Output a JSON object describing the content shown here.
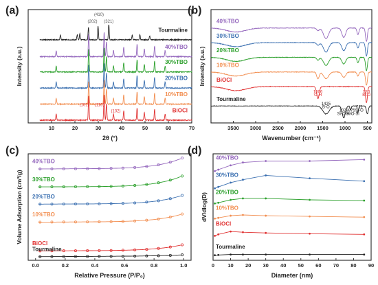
{
  "chart_data": [
    {
      "panel_label": "(a)",
      "type": "line",
      "xlabel": "2θ (°)",
      "ylabel": "Intensity (a.u.)",
      "xlim": [
        0,
        70
      ],
      "xticks": [
        10,
        20,
        30,
        40,
        50,
        60,
        70
      ],
      "series": [
        {
          "name": "Tourmaline",
          "color": "#222222",
          "offset": 5.4,
          "peaks": [
            [
              13.8,
              0.3
            ],
            [
              21.0,
              0.35
            ],
            [
              22.1,
              0.4
            ],
            [
              25.8,
              0.8
            ],
            [
              29.9,
              0.9
            ],
            [
              34.5,
              1.0
            ],
            [
              44.5,
              0.3
            ],
            [
              47.8,
              0.35
            ],
            [
              52.0,
              0.25
            ]
          ]
        },
        {
          "name": "40%TBO",
          "color": "#9467bd",
          "offset": 4.3,
          "peaks": [
            [
              12.0,
              0.4
            ],
            [
              25.9,
              1.5
            ],
            [
              32.5,
              1.6
            ],
            [
              33.5,
              1.0
            ],
            [
              36.5,
              0.4
            ],
            [
              40.9,
              0.6
            ],
            [
              46.6,
              0.8
            ],
            [
              49.7,
              0.5
            ],
            [
              54.1,
              0.7
            ],
            [
              58.6,
              0.4
            ]
          ]
        },
        {
          "name": "30%TBO",
          "color": "#2ca02c",
          "offset": 3.3,
          "peaks": [
            [
              12.0,
              0.4
            ],
            [
              25.9,
              1.5
            ],
            [
              32.5,
              1.6
            ],
            [
              33.5,
              1.0
            ],
            [
              36.5,
              0.4
            ],
            [
              40.9,
              0.6
            ],
            [
              46.6,
              0.8
            ],
            [
              49.7,
              0.5
            ],
            [
              54.1,
              0.7
            ],
            [
              58.6,
              0.4
            ]
          ]
        },
        {
          "name": "20%TBO",
          "color": "#3a6fb0",
          "offset": 2.25,
          "peaks": [
            [
              12.0,
              0.4
            ],
            [
              25.9,
              1.5
            ],
            [
              32.5,
              1.6
            ],
            [
              33.5,
              1.0
            ],
            [
              36.5,
              0.4
            ],
            [
              40.9,
              0.6
            ],
            [
              46.6,
              0.8
            ],
            [
              49.7,
              0.5
            ],
            [
              54.1,
              0.7
            ],
            [
              58.6,
              0.4
            ]
          ]
        },
        {
          "name": "10%TBO",
          "color": "#f28e50",
          "offset": 1.2,
          "peaks": [
            [
              12.0,
              0.4
            ],
            [
              25.9,
              1.5
            ],
            [
              32.5,
              1.6
            ],
            [
              33.5,
              1.0
            ],
            [
              36.5,
              0.4
            ],
            [
              40.9,
              0.6
            ],
            [
              46.6,
              0.8
            ],
            [
              49.7,
              0.5
            ],
            [
              54.1,
              0.7
            ],
            [
              58.6,
              0.4
            ]
          ]
        },
        {
          "name": "BiOCl",
          "color": "#e03030",
          "offset": 0.15,
          "peaks": [
            [
              12.0,
              0.4
            ],
            [
              25.9,
              1.6
            ],
            [
              32.5,
              1.7
            ],
            [
              33.5,
              1.1
            ],
            [
              36.5,
              0.4
            ],
            [
              40.9,
              0.6
            ],
            [
              46.6,
              0.8
            ],
            [
              49.7,
              0.5
            ],
            [
              54.1,
              0.7
            ],
            [
              58.6,
              0.4
            ]
          ]
        }
      ],
      "annotations": [
        {
          "text": "(202)",
          "x": 27.5,
          "y": 6.55,
          "color": "#555555"
        },
        {
          "text": "(410)",
          "x": 30.3,
          "y": 7.0,
          "color": "#555555"
        },
        {
          "text": "(321)",
          "x": 34.5,
          "y": 6.55,
          "color": "#555555"
        },
        {
          "text": "(101)",
          "x": 24.0,
          "y": 1.1,
          "color": "#e03030"
        },
        {
          "text": "(110)",
          "x": 30.5,
          "y": 1.1,
          "color": "#e03030"
        },
        {
          "text": "(102)",
          "x": 37.5,
          "y": 0.7,
          "color": "#e03030"
        }
      ]
    },
    {
      "panel_label": "(b)",
      "type": "line",
      "xlabel": "Wavenumber (cm⁻¹)",
      "ylabel": "Intensity (a.u.)",
      "xlim": [
        4000,
        400
      ],
      "xticks": [
        3500,
        3000,
        2500,
        2000,
        1500,
        1000,
        500
      ],
      "series": [
        {
          "name": "40%TBO",
          "color": "#9467bd",
          "offset": 6.8,
          "bands": [
            [
              3440,
              0.3,
              300
            ],
            [
              1606,
              0.2,
              40
            ],
            [
              1425,
              0.8,
              80
            ],
            [
              1028,
              0.7,
              60
            ],
            [
              711,
              0.5,
              30
            ],
            [
              520,
              1.0,
              30
            ]
          ]
        },
        {
          "name": "30%TBO",
          "color": "#3a6fb0",
          "offset": 5.7,
          "bands": [
            [
              3440,
              0.3,
              300
            ],
            [
              1606,
              0.2,
              40
            ],
            [
              1425,
              0.7,
              80
            ],
            [
              1028,
              0.6,
              60
            ],
            [
              711,
              0.4,
              30
            ],
            [
              520,
              1.0,
              30
            ]
          ]
        },
        {
          "name": "20%TBO",
          "color": "#2ca02c",
          "offset": 4.6,
          "bands": [
            [
              3440,
              0.3,
              300
            ],
            [
              1606,
              0.2,
              40
            ],
            [
              1425,
              0.6,
              80
            ],
            [
              1028,
              0.5,
              60
            ],
            [
              711,
              0.4,
              30
            ],
            [
              520,
              1.0,
              30
            ]
          ]
        },
        {
          "name": "10%TBO",
          "color": "#f28e50",
          "offset": 3.5,
          "bands": [
            [
              3440,
              0.3,
              300
            ],
            [
              1606,
              0.5,
              40
            ],
            [
              1425,
              0.5,
              80
            ],
            [
              1028,
              0.4,
              60
            ],
            [
              711,
              0.3,
              30
            ],
            [
              520,
              1.0,
              30
            ]
          ]
        },
        {
          "name": "BiOCl",
          "color": "#e03030",
          "offset": 2.4,
          "bands": [
            [
              3440,
              0.3,
              300
            ],
            [
              1606,
              0.9,
              40
            ],
            [
              520,
              1.2,
              30
            ]
          ]
        },
        {
          "name": "Tourmaline",
          "color": "#222222",
          "offset": 0.95,
          "bands": [
            [
              1425,
              0.6,
              100
            ],
            [
              1028,
              0.9,
              50
            ],
            [
              875,
              0.3,
              20
            ],
            [
              711,
              0.5,
              20
            ],
            [
              500,
              0.6,
              30
            ]
          ]
        }
      ],
      "annotations": [
        {
          "text": "1606",
          "x": 1606,
          "y": 1.95,
          "color": "#e03030"
        },
        {
          "text": "O-H",
          "x": 1606,
          "y": 1.7,
          "color": "#e03030"
        },
        {
          "text": "520",
          "x": 520,
          "y": 1.95,
          "color": "#e03030"
        },
        {
          "text": "Bi-O",
          "x": 520,
          "y": 1.7,
          "color": "#e03030"
        },
        {
          "text": "1425",
          "x": 1425,
          "y": 1.05,
          "color": "#222222"
        },
        {
          "text": "B-O",
          "x": 1425,
          "y": 0.8,
          "color": "#222222"
        },
        {
          "text": "1028",
          "x": 1028,
          "y": 0.55,
          "color": "#222222"
        },
        {
          "text": "Si-O-Al",
          "x": 1028,
          "y": 0.3,
          "color": "#222222"
        },
        {
          "text": "875",
          "x": 850,
          "y": 0.55,
          "color": "#222222"
        },
        {
          "text": "Si-O-Si",
          "x": 830,
          "y": 0.3,
          "color": "#222222"
        },
        {
          "text": "711",
          "x": 680,
          "y": 0.8,
          "color": "#222222"
        },
        {
          "text": "Si-O",
          "x": 680,
          "y": 0.55,
          "color": "#222222"
        }
      ]
    },
    {
      "panel_label": "(c)",
      "type": "line",
      "xlabel": "Relative Pressure (P/P₀)",
      "ylabel": "Volume Adsorption (cm³/g)",
      "xlim": [
        -0.05,
        1.05
      ],
      "xticks": [
        0.0,
        0.2,
        0.4,
        0.6,
        0.8,
        1.0
      ],
      "series": [
        {
          "name": "40%TBO",
          "color": "#9467bd",
          "base": 6.25,
          "rise": 0.75
        },
        {
          "name": "30%TBO",
          "color": "#2ca02c",
          "base": 5.0,
          "rise": 0.75
        },
        {
          "name": "20%TBO",
          "color": "#3a6fb0",
          "base": 3.8,
          "rise": 0.6
        },
        {
          "name": "10%TBO",
          "color": "#f28e50",
          "base": 2.55,
          "rise": 0.55
        },
        {
          "name": "BiOCl",
          "color": "#e03030",
          "base": 0.55,
          "rise": 0.4
        },
        {
          "name": "Tourmaline",
          "color": "#222222",
          "base": 0.15,
          "rise": 0.08
        }
      ]
    },
    {
      "panel_label": "(d)",
      "type": "line",
      "xlabel": "Diameter (nm)",
      "ylabel": "dV/dlog(D)",
      "xlim": [
        0,
        90
      ],
      "xticks": [
        0,
        10,
        20,
        30,
        40,
        50,
        60,
        70,
        80,
        90
      ],
      "series": [
        {
          "name": "40%TBO",
          "color": "#9467bd",
          "base": 6.1,
          "points": [
            [
              1,
              6.1
            ],
            [
              3,
              6.2
            ],
            [
              10,
              6.5
            ],
            [
              17,
              6.7
            ],
            [
              30,
              6.8
            ],
            [
              55,
              6.8
            ],
            [
              86,
              6.9
            ]
          ]
        },
        {
          "name": "30%TBO",
          "color": "#3a6fb0",
          "base": 4.9,
          "points": [
            [
              1,
              4.9
            ],
            [
              3,
              5.0
            ],
            [
              10,
              5.3
            ],
            [
              17,
              5.5
            ],
            [
              30,
              5.8
            ],
            [
              55,
              5.6
            ],
            [
              86,
              5.4
            ]
          ]
        },
        {
          "name": "20%TBO",
          "color": "#2ca02c",
          "base": 3.85,
          "points": [
            [
              1,
              3.85
            ],
            [
              3,
              3.9
            ],
            [
              10,
              4.1
            ],
            [
              17,
              4.2
            ],
            [
              30,
              4.2
            ],
            [
              55,
              4.1
            ],
            [
              86,
              4.05
            ]
          ]
        },
        {
          "name": "10%TBO",
          "color": "#f28e50",
          "base": 2.8,
          "points": [
            [
              1,
              2.8
            ],
            [
              3,
              2.85
            ],
            [
              10,
              3.0
            ],
            [
              17,
              3.05
            ],
            [
              30,
              3.0
            ],
            [
              55,
              2.95
            ],
            [
              86,
              2.9
            ]
          ]
        },
        {
          "name": "BiOCl",
          "color": "#e03030",
          "base": 1.6,
          "points": [
            [
              1,
              1.6
            ],
            [
              3,
              1.7
            ],
            [
              10,
              1.9
            ],
            [
              17,
              1.85
            ],
            [
              30,
              1.8
            ],
            [
              55,
              1.75
            ],
            [
              86,
              1.7
            ]
          ]
        },
        {
          "name": "Tourmaline",
          "color": "#222222",
          "base": 0.25,
          "points": [
            [
              1,
              0.25
            ],
            [
              3,
              0.27
            ],
            [
              10,
              0.3
            ],
            [
              17,
              0.3
            ],
            [
              30,
              0.3
            ],
            [
              55,
              0.3
            ],
            [
              86,
              0.3
            ]
          ]
        }
      ]
    }
  ]
}
